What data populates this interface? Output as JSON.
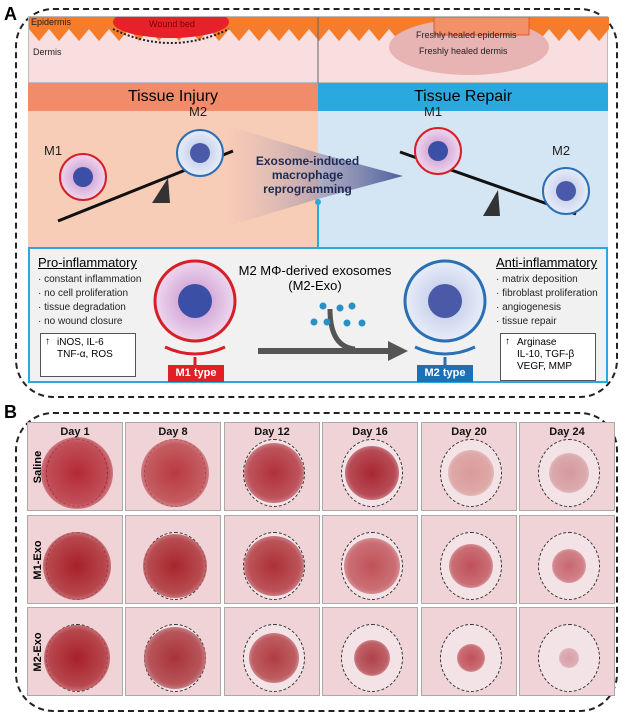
{
  "panel_a": {
    "label": "A",
    "skin": {
      "epidermis": "Epidermis",
      "dermis": "Dermis",
      "wound_bed": "Wound bed",
      "healed_epidermis": "Freshly healed epidermis",
      "healed_dermis": "Freshly healed dermis"
    },
    "injury": {
      "title": "Tissue Injury",
      "m1": "M1",
      "m2": "M2",
      "color": "#f28b6a"
    },
    "repair": {
      "title": "Tissue Repair",
      "m1": "M1",
      "m2": "M2",
      "color": "#29a9e0"
    },
    "arrow_text": "Exosome-induced macrophage reprogramming",
    "bottom": {
      "pro_title": "Pro-inflammatory",
      "pro_items": [
        "· constant inflammation",
        "· no cell proliferation",
        "· tissue degradation",
        "· no wound closure"
      ],
      "pro_markers": [
        "iNOS, IL-6",
        "TNF-α, ROS"
      ],
      "m1_type": "M1 type",
      "exo_title": "M2 MΦ-derived exosomes",
      "exo_sub": "(M2-Exo)",
      "m2_type": "M2 type",
      "anti_title": "Anti-inflammatory",
      "anti_items": [
        "· matrix deposition",
        "· fibroblast proliferation",
        "· angiogenesis",
        "· tissue repair"
      ],
      "anti_markers": [
        "Arginase",
        "IL-10, TGF-β",
        "VEGF, MMP"
      ],
      "up_arrow": "↑"
    }
  },
  "panel_b": {
    "label": "B",
    "days": [
      "Day 1",
      "Day 8",
      "Day 12",
      "Day 16",
      "Day 20",
      "Day 24"
    ],
    "groups": [
      "Saline",
      "M1-Exo",
      "M2-Exo"
    ]
  }
}
